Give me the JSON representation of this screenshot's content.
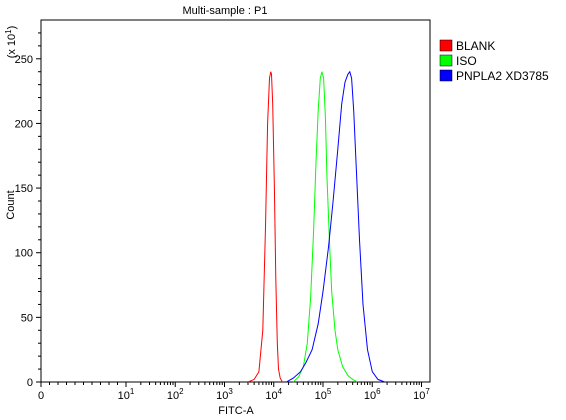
{
  "chart_data": {
    "type": "line",
    "title": "Multi-sample : P1",
    "xlabel": "FITC-A",
    "ylabel": "Count",
    "y_multiplier_label": "(x 10",
    "y_multiplier_exp": "1",
    "x_scale": "biexponential",
    "xlim": [
      0,
      10000000
    ],
    "ylim": [
      0,
      280
    ],
    "x_ticks": [
      {
        "value": 0,
        "base": "0",
        "exp": ""
      },
      {
        "value": 10,
        "base": "10",
        "exp": "1"
      },
      {
        "value": 100,
        "base": "10",
        "exp": "2"
      },
      {
        "value": 1000,
        "base": "10",
        "exp": "3"
      },
      {
        "value": 10000,
        "base": "10",
        "exp": "4"
      },
      {
        "value": 100000,
        "base": "10",
        "exp": "5"
      },
      {
        "value": 1000000,
        "base": "10",
        "exp": "6"
      },
      {
        "value": 10000000,
        "base": "10",
        "exp": "7"
      }
    ],
    "y_ticks": [
      0,
      50,
      100,
      150,
      200,
      250
    ],
    "grid": false,
    "legend_position": "top-right",
    "series": [
      {
        "name": "BLANK",
        "color": "#ff0000",
        "x": [
          3000,
          4000,
          5000,
          6000,
          6800,
          7500,
          8200,
          8700,
          9000,
          9500,
          10300,
          11000,
          11800,
          12500,
          13500,
          15000
        ],
        "y": [
          0,
          2,
          8,
          40,
          120,
          200,
          235,
          240,
          238,
          215,
          150,
          80,
          30,
          10,
          3,
          0
        ]
      },
      {
        "name": "ISO",
        "color": "#00ff00",
        "x": [
          25000,
          32000,
          40000,
          48000,
          56000,
          64000,
          72000,
          80000,
          88000,
          95000,
          103000,
          112000,
          120000,
          135000,
          150000,
          175000,
          200000,
          250000,
          320000,
          400000,
          500000
        ],
        "y": [
          0,
          4,
          12,
          30,
          65,
          115,
          170,
          210,
          235,
          240,
          235,
          205,
          160,
          110,
          70,
          40,
          25,
          12,
          5,
          2,
          0
        ]
      },
      {
        "name": "PNPLA2 XD3785",
        "color": "#0000ff",
        "x": [
          18000,
          25000,
          35000,
          45000,
          60000,
          80000,
          100000,
          130000,
          160000,
          200000,
          240000,
          280000,
          320000,
          350000,
          380000,
          420000,
          480000,
          550000,
          650000,
          800000,
          1000000,
          1300000,
          1800000
        ],
        "y": [
          0,
          3,
          8,
          15,
          25,
          45,
          70,
          105,
          140,
          180,
          215,
          232,
          238,
          240,
          235,
          210,
          160,
          110,
          60,
          25,
          8,
          2,
          0
        ]
      }
    ]
  }
}
